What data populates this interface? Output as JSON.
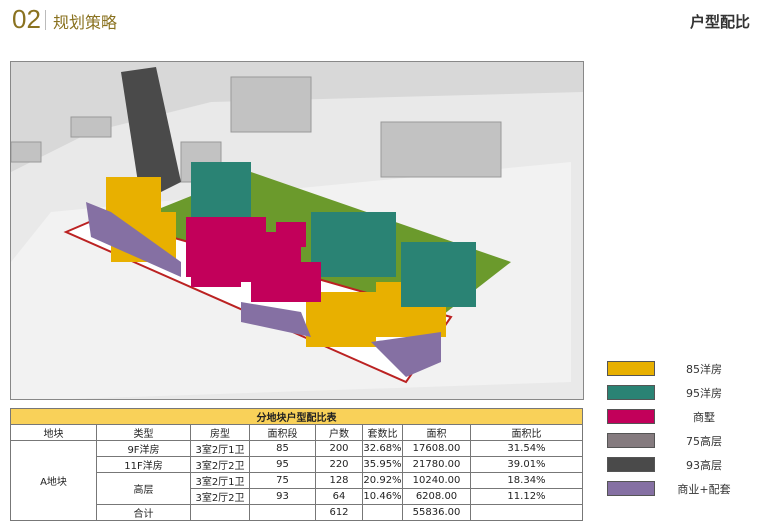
{
  "header": {
    "section_number": "02",
    "section_title": "规划策略",
    "page_title": "户型配比"
  },
  "legend": [
    {
      "label": "85洋房",
      "color": "#e8b000"
    },
    {
      "label": "95洋房",
      "color": "#2a8374"
    },
    {
      "label": "商墅",
      "color": "#c2005a"
    },
    {
      "label": "75高层",
      "color": "#857b7f"
    },
    {
      "label": "93高层",
      "color": "#4a4a4a"
    },
    {
      "label": "商业+配套",
      "color": "#8570a3"
    }
  ],
  "table": {
    "title": "分地块户型配比表",
    "headers": [
      "地块",
      "类型",
      "房型",
      "面积段",
      "户数",
      "套数比",
      "面积",
      "面积比"
    ],
    "plot": "A地块",
    "rows": [
      {
        "type": "9F洋房",
        "room": "3室2厅1卫",
        "area_seg": "85",
        "units": "200",
        "unit_ratio": "32.68%",
        "area": "17608.00",
        "area_ratio": "31.54%"
      },
      {
        "type": "11F洋房",
        "room": "3室2厅2卫",
        "area_seg": "95",
        "units": "220",
        "unit_ratio": "35.95%",
        "area": "21780.00",
        "area_ratio": "39.01%"
      },
      {
        "type": "高层",
        "room": "3室2厅1卫",
        "area_seg": "75",
        "units": "128",
        "unit_ratio": "20.92%",
        "area": "10240.00",
        "area_ratio": "18.34%"
      },
      {
        "room": "3室2厅2卫",
        "area_seg": "93",
        "units": "64",
        "unit_ratio": "10.46%",
        "area": "6208.00",
        "area_ratio": "11.12%"
      }
    ],
    "total": {
      "label": "合计",
      "units": "612",
      "area": "55836.00"
    }
  }
}
